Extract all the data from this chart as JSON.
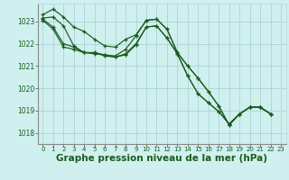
{
  "background_color": "#d0f0f0",
  "grid_color": "#b0d8d8",
  "line_color": "#1a5c1a",
  "xlabel": "Graphe pression niveau de la mer (hPa)",
  "xlabel_fontsize": 7.5,
  "ylim": [
    1017.5,
    1023.8
  ],
  "xlim": [
    -0.5,
    23.5
  ],
  "yticks": [
    1018,
    1019,
    1020,
    1021,
    1022,
    1023
  ],
  "xticks": [
    0,
    1,
    2,
    3,
    4,
    5,
    6,
    7,
    8,
    9,
    10,
    11,
    12,
    13,
    14,
    15,
    16,
    17,
    18,
    19,
    20,
    21,
    22,
    23
  ],
  "series": [
    [
      1023.3,
      1023.55,
      1023.2,
      1022.75,
      1022.55,
      1022.2,
      1021.9,
      1021.85,
      1022.2,
      1022.4,
      1023.05,
      1023.1,
      1022.65,
      1021.6,
      1021.0,
      1020.45,
      1019.85,
      1019.2,
      1018.35,
      1018.85,
      1019.15,
      1019.15,
      1018.85,
      null
    ],
    [
      1023.15,
      1023.2,
      1022.8,
      1021.9,
      1021.6,
      1021.55,
      1021.5,
      1021.45,
      1021.75,
      1022.35,
      1023.05,
      1023.1,
      1022.65,
      1021.6,
      1021.0,
      1020.45,
      1019.85,
      1019.2,
      1018.35,
      1018.85,
      1019.15,
      1019.15,
      1018.85,
      null
    ],
    [
      1023.1,
      1022.75,
      1022.0,
      1021.85,
      1021.6,
      1021.6,
      1021.5,
      1021.4,
      1021.55,
      1022.0,
      1022.75,
      1022.8,
      1022.25,
      1021.55,
      1020.55,
      1019.75,
      1019.35,
      1018.95,
      1018.4,
      1018.85,
      1019.15,
      1019.15,
      1018.85,
      null
    ],
    [
      1023.05,
      1022.65,
      1021.85,
      1021.75,
      1021.6,
      1021.6,
      1021.45,
      1021.4,
      1021.5,
      1021.95,
      1022.75,
      1022.8,
      1022.25,
      1021.55,
      1020.55,
      1019.75,
      1019.35,
      1018.95,
      1018.4,
      1018.85,
      1019.15,
      1019.15,
      1018.85,
      null
    ]
  ]
}
